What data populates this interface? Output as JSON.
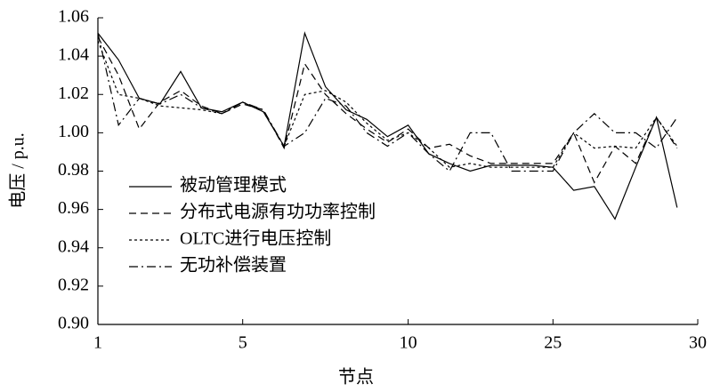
{
  "chart_data": {
    "type": "line",
    "xlabel": "节点",
    "ylabel": "电压 / p.u.",
    "categories": [
      "1",
      null,
      null,
      null,
      null,
      null,
      null,
      "5",
      null,
      null,
      null,
      null,
      null,
      null,
      null,
      "10",
      null,
      null,
      null,
      null,
      null,
      null,
      "25",
      null,
      null,
      null,
      null,
      null,
      null,
      "30"
    ],
    "ylim": [
      0.9,
      1.06
    ],
    "yticks": [
      {
        "value": 0.9,
        "label": "0.90"
      },
      0.92,
      0.94,
      0.96,
      0.98,
      {
        "value": 1.0,
        "label": "1.00"
      },
      1.02,
      1.04,
      1.06
    ],
    "legend": "center-left",
    "series": [
      {
        "name": "被动管理模式",
        "color": "#000000",
        "dash": "solid",
        "values": [
          1.052,
          1.038,
          1.018,
          1.015,
          1.032,
          1.013,
          1.011,
          1.016,
          1.011,
          0.993,
          1.052,
          1.024,
          1.012,
          1.007,
          0.998,
          1.004,
          0.989,
          0.984,
          0.98,
          0.983,
          0.983,
          0.983,
          0.982,
          0.97,
          0.972,
          0.955,
          0.982,
          1.008,
          0.961,
          null
        ]
      },
      {
        "name": "分布式电源有功功率控制",
        "color": "#000000",
        "dash": "dashed",
        "values": [
          1.05,
          1.03,
          1.002,
          1.016,
          1.022,
          1.014,
          1.01,
          1.015,
          1.012,
          0.992,
          1.036,
          1.02,
          1.01,
          1.002,
          0.995,
          1.002,
          0.992,
          0.994,
          0.988,
          0.984,
          0.984,
          0.984,
          0.984,
          1.0,
          0.974,
          0.993,
          0.984,
          1.008,
          0.992,
          null
        ]
      },
      {
        "name": "OLTC进行电压控制",
        "color": "#000000",
        "dash": "dotted",
        "values": [
          1.048,
          1.02,
          1.018,
          1.014,
          1.013,
          1.012,
          1.01,
          1.016,
          1.011,
          0.993,
          1.02,
          1.022,
          1.016,
          1.005,
          0.996,
          1.0,
          0.992,
          0.982,
          0.984,
          0.982,
          0.982,
          0.982,
          0.982,
          1.0,
          0.992,
          0.993,
          0.992,
          1.008,
          0.993,
          null
        ]
      },
      {
        "name": "无功补偿装置",
        "color": "#000000",
        "dash": "dashdot",
        "values": [
          1.052,
          1.004,
          1.018,
          1.015,
          1.02,
          1.013,
          1.01,
          1.016,
          1.012,
          0.993,
          1.0,
          1.018,
          1.014,
          1.0,
          0.993,
          1.0,
          0.989,
          0.98,
          1.0,
          1.0,
          0.98,
          0.98,
          0.98,
          1.0,
          1.01,
          1.0,
          1.0,
          0.992,
          1.008,
          null
        ]
      }
    ]
  }
}
